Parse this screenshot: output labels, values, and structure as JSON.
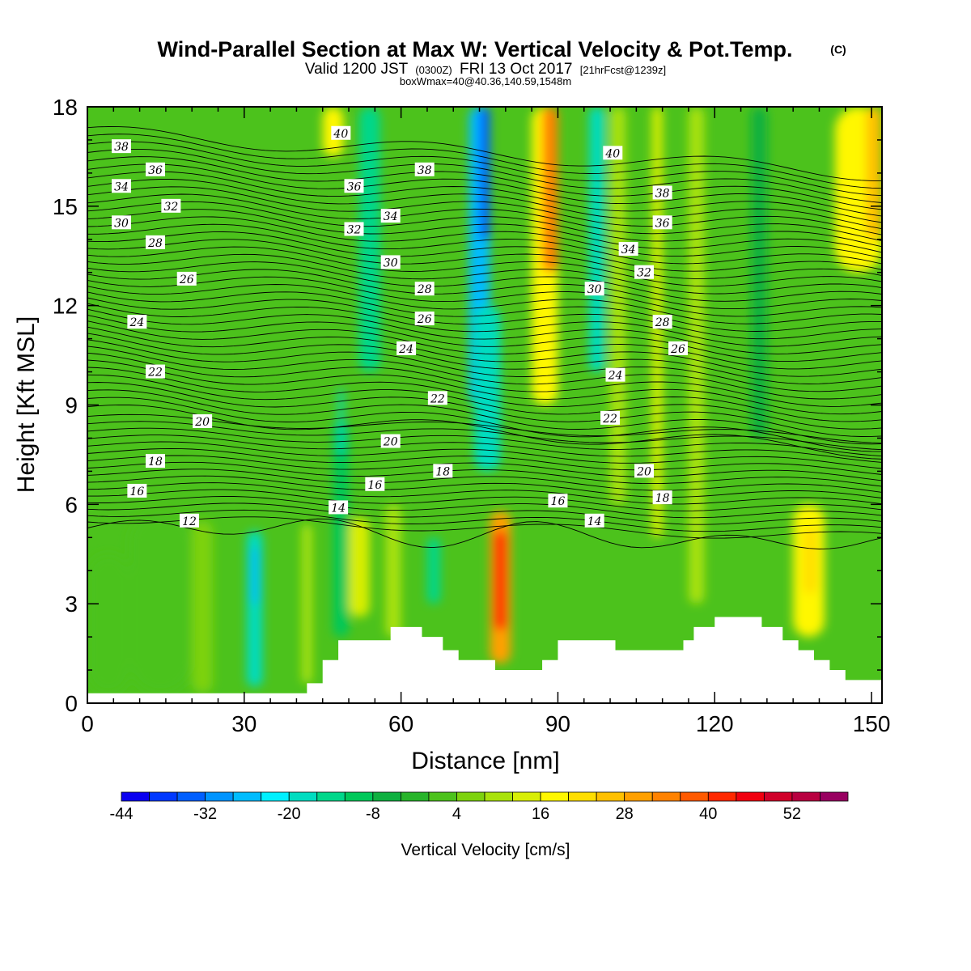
{
  "header": {
    "title": "Wind-Parallel Section at Max W: Vertical Velocity & Pot.Temp.",
    "title_mark": "(C)",
    "valid_prefix": "Valid 1200 JST",
    "valid_z": "(0300Z)",
    "valid_date": "FRI 13 Oct 2017",
    "valid_fcst": "[21hrFcst@1239z]",
    "box_info": "boxWmax=40@40.36,140.59,1548m"
  },
  "chart_data": {
    "type": "heatmap",
    "title": "Wind-Parallel Section at Max W: Vertical Velocity & Pot.Temp.",
    "xlabel": "Distance [nm]",
    "ylabel": "Height [Kft MSL]",
    "xlim": [
      0,
      152
    ],
    "ylim": [
      0,
      18
    ],
    "x_ticks": [
      "0",
      "30",
      "60",
      "90",
      "120",
      "150"
    ],
    "x_tick_values": [
      0,
      30,
      60,
      90,
      120,
      150
    ],
    "y_ticks": [
      "0",
      "3",
      "6",
      "9",
      "12",
      "15",
      "18"
    ],
    "y_tick_values": [
      0,
      3,
      6,
      9,
      12,
      15,
      18
    ],
    "colorbar": {
      "label": "Vertical Velocity [cm/s]",
      "min": -44,
      "max": 60,
      "step": 4,
      "tick_labels": [
        "-44",
        "-32",
        "-20",
        "-8",
        "4",
        "16",
        "28",
        "40",
        "52"
      ],
      "tick_values": [
        -44,
        -32,
        -20,
        -8,
        4,
        16,
        28,
        40,
        52
      ],
      "colors": [
        "#0a00f0",
        "#0038ff",
        "#005fff",
        "#0094ff",
        "#00bcff",
        "#00f0ff",
        "#00dcc0",
        "#00d78a",
        "#00c85a",
        "#0fb040",
        "#27b42a",
        "#4cc21c",
        "#7dd20e",
        "#a9e20b",
        "#d8ee06",
        "#fff700",
        "#ffde00",
        "#ffc000",
        "#ffa000",
        "#ff8200",
        "#ff5a00",
        "#ff2800",
        "#f00010",
        "#d0002a",
        "#b80040",
        "#980060"
      ]
    },
    "velocity_cells": [
      {
        "x": 0,
        "y": 0.3,
        "w": 8,
        "h": 4.2,
        "v": 2
      },
      {
        "x": 8,
        "y": 0.3,
        "w": 12,
        "h": 5.5,
        "v": 0
      },
      {
        "x": 20,
        "y": 0.3,
        "w": 4,
        "h": 5.2,
        "v": 6
      },
      {
        "x": 30.5,
        "y": 0.5,
        "w": 3,
        "h": 4.7,
        "v": -20
      },
      {
        "x": 31.3,
        "y": 3,
        "w": 1.4,
        "h": 1.7,
        "v": -26
      },
      {
        "x": 41,
        "y": 0.6,
        "w": 2,
        "h": 4.8,
        "v": 10
      },
      {
        "x": 45,
        "y": 16.5,
        "w": 4,
        "h": 1.5,
        "v": 18
      },
      {
        "x": 47,
        "y": 2,
        "w": 3,
        "h": 6.5,
        "v": -10
      },
      {
        "x": 48,
        "y": 7.5,
        "w": 1,
        "h": 2,
        "v": -20
      },
      {
        "x": 50,
        "y": 2.6,
        "w": 4,
        "h": 3,
        "v": 12
      },
      {
        "x": 52,
        "y": 10,
        "w": 4,
        "h": 8,
        "v": -14
      },
      {
        "x": 57,
        "y": 2,
        "w": 3,
        "h": 4,
        "v": 8
      },
      {
        "x": 65,
        "y": 3,
        "w": 2.5,
        "h": 2,
        "v": -16
      },
      {
        "x": 73,
        "y": 9,
        "w": 4,
        "h": 9,
        "v": -28
      },
      {
        "x": 75,
        "y": 14,
        "w": 2,
        "h": 4,
        "v": -36
      },
      {
        "x": 74,
        "y": 7,
        "w": 5,
        "h": 5,
        "v": -18
      },
      {
        "x": 77,
        "y": 1.2,
        "w": 4,
        "h": 4.6,
        "v": 30
      },
      {
        "x": 77.8,
        "y": 2.2,
        "w": 2.4,
        "h": 3,
        "v": 42
      },
      {
        "x": 85,
        "y": 9,
        "w": 5,
        "h": 9,
        "v": 18
      },
      {
        "x": 87,
        "y": 13,
        "w": 3,
        "h": 5,
        "v": 32
      },
      {
        "x": 96,
        "y": 10,
        "w": 3,
        "h": 8,
        "v": -18
      },
      {
        "x": 100,
        "y": 6,
        "w": 3,
        "h": 12,
        "v": 10
      },
      {
        "x": 108,
        "y": 5,
        "w": 2,
        "h": 13,
        "v": 12
      },
      {
        "x": 115,
        "y": 3,
        "w": 3,
        "h": 15,
        "v": 8
      },
      {
        "x": 127,
        "y": 8,
        "w": 3,
        "h": 10,
        "v": -8
      },
      {
        "x": 135,
        "y": 2,
        "w": 6,
        "h": 4,
        "v": 18
      },
      {
        "x": 137,
        "y": 3.3,
        "w": 2.5,
        "h": 2,
        "v": 22
      },
      {
        "x": 143,
        "y": 13,
        "w": 9,
        "h": 5,
        "v": 18
      },
      {
        "x": 149,
        "y": 14,
        "w": 3,
        "h": 4,
        "v": 26
      }
    ],
    "terrain_profile": [
      [
        0,
        0.3
      ],
      [
        42,
        0.3
      ],
      [
        42,
        0.6
      ],
      [
        45,
        0.6
      ],
      [
        45,
        1.3
      ],
      [
        48,
        1.3
      ],
      [
        48,
        1.9
      ],
      [
        58,
        1.9
      ],
      [
        58,
        2.3
      ],
      [
        64,
        2.3
      ],
      [
        64,
        2.0
      ],
      [
        68,
        2.0
      ],
      [
        68,
        1.6
      ],
      [
        71,
        1.6
      ],
      [
        71,
        1.3
      ],
      [
        78,
        1.3
      ],
      [
        78,
        1.0
      ],
      [
        82,
        1.0
      ],
      [
        82,
        1.0
      ],
      [
        87,
        1.0
      ],
      [
        87,
        1.3
      ],
      [
        90,
        1.3
      ],
      [
        90,
        1.9
      ],
      [
        101,
        1.9
      ],
      [
        101,
        1.6
      ],
      [
        114,
        1.6
      ],
      [
        114,
        1.9
      ],
      [
        116,
        1.9
      ],
      [
        116,
        2.3
      ],
      [
        120,
        2.3
      ],
      [
        120,
        2.6
      ],
      [
        129,
        2.6
      ],
      [
        129,
        2.3
      ],
      [
        133,
        2.3
      ],
      [
        133,
        1.9
      ],
      [
        136,
        1.9
      ],
      [
        136,
        1.6
      ],
      [
        139,
        1.6
      ],
      [
        139,
        1.3
      ],
      [
        142,
        1.3
      ],
      [
        142,
        1.0
      ],
      [
        145,
        1.0
      ],
      [
        145,
        0.7
      ],
      [
        152,
        0.7
      ]
    ],
    "theta_levels": [
      12,
      14,
      16,
      18,
      20,
      22,
      24,
      26,
      28,
      30,
      32,
      34,
      36,
      38,
      40
    ],
    "theta_labels": [
      {
        "text": "40",
        "x": 48.5,
        "y": 17.2
      },
      {
        "text": "38",
        "x": 6.5,
        "y": 16.8
      },
      {
        "text": "36",
        "x": 13,
        "y": 16.1
      },
      {
        "text": "34",
        "x": 6.5,
        "y": 15.6
      },
      {
        "text": "32",
        "x": 16,
        "y": 15.0
      },
      {
        "text": "30",
        "x": 6.5,
        "y": 14.5
      },
      {
        "text": "28",
        "x": 13,
        "y": 13.9
      },
      {
        "text": "26",
        "x": 19,
        "y": 12.8
      },
      {
        "text": "24",
        "x": 9.5,
        "y": 11.5
      },
      {
        "text": "22",
        "x": 13,
        "y": 10.0
      },
      {
        "text": "20",
        "x": 22,
        "y": 8.5
      },
      {
        "text": "18",
        "x": 13,
        "y": 7.3
      },
      {
        "text": "16",
        "x": 9.5,
        "y": 6.4
      },
      {
        "text": "12",
        "x": 19.5,
        "y": 5.5
      },
      {
        "text": "38",
        "x": 64.5,
        "y": 16.1
      },
      {
        "text": "36",
        "x": 51,
        "y": 15.6
      },
      {
        "text": "34",
        "x": 58,
        "y": 14.7
      },
      {
        "text": "32",
        "x": 51,
        "y": 14.3
      },
      {
        "text": "30",
        "x": 58,
        "y": 13.3
      },
      {
        "text": "28",
        "x": 64.5,
        "y": 12.5
      },
      {
        "text": "26",
        "x": 64.5,
        "y": 11.6
      },
      {
        "text": "24",
        "x": 61,
        "y": 10.7
      },
      {
        "text": "22",
        "x": 67,
        "y": 9.2
      },
      {
        "text": "20",
        "x": 58,
        "y": 7.9
      },
      {
        "text": "18",
        "x": 68,
        "y": 7.0
      },
      {
        "text": "16",
        "x": 55,
        "y": 6.6
      },
      {
        "text": "14",
        "x": 48,
        "y": 5.9
      },
      {
        "text": "40",
        "x": 100.5,
        "y": 16.6
      },
      {
        "text": "38",
        "x": 110,
        "y": 15.4
      },
      {
        "text": "36",
        "x": 110,
        "y": 14.5
      },
      {
        "text": "34",
        "x": 103.5,
        "y": 13.7
      },
      {
        "text": "32",
        "x": 106.5,
        "y": 13.0
      },
      {
        "text": "30",
        "x": 97,
        "y": 12.5
      },
      {
        "text": "28",
        "x": 110,
        "y": 11.5
      },
      {
        "text": "26",
        "x": 113,
        "y": 10.7
      },
      {
        "text": "24",
        "x": 101,
        "y": 9.9
      },
      {
        "text": "22",
        "x": 100,
        "y": 8.6
      },
      {
        "text": "20",
        "x": 106.5,
        "y": 7.0
      },
      {
        "text": "18",
        "x": 110,
        "y": 6.2
      },
      {
        "text": "16",
        "x": 90,
        "y": 6.1
      },
      {
        "text": "14",
        "x": 97,
        "y": 5.5
      }
    ]
  }
}
